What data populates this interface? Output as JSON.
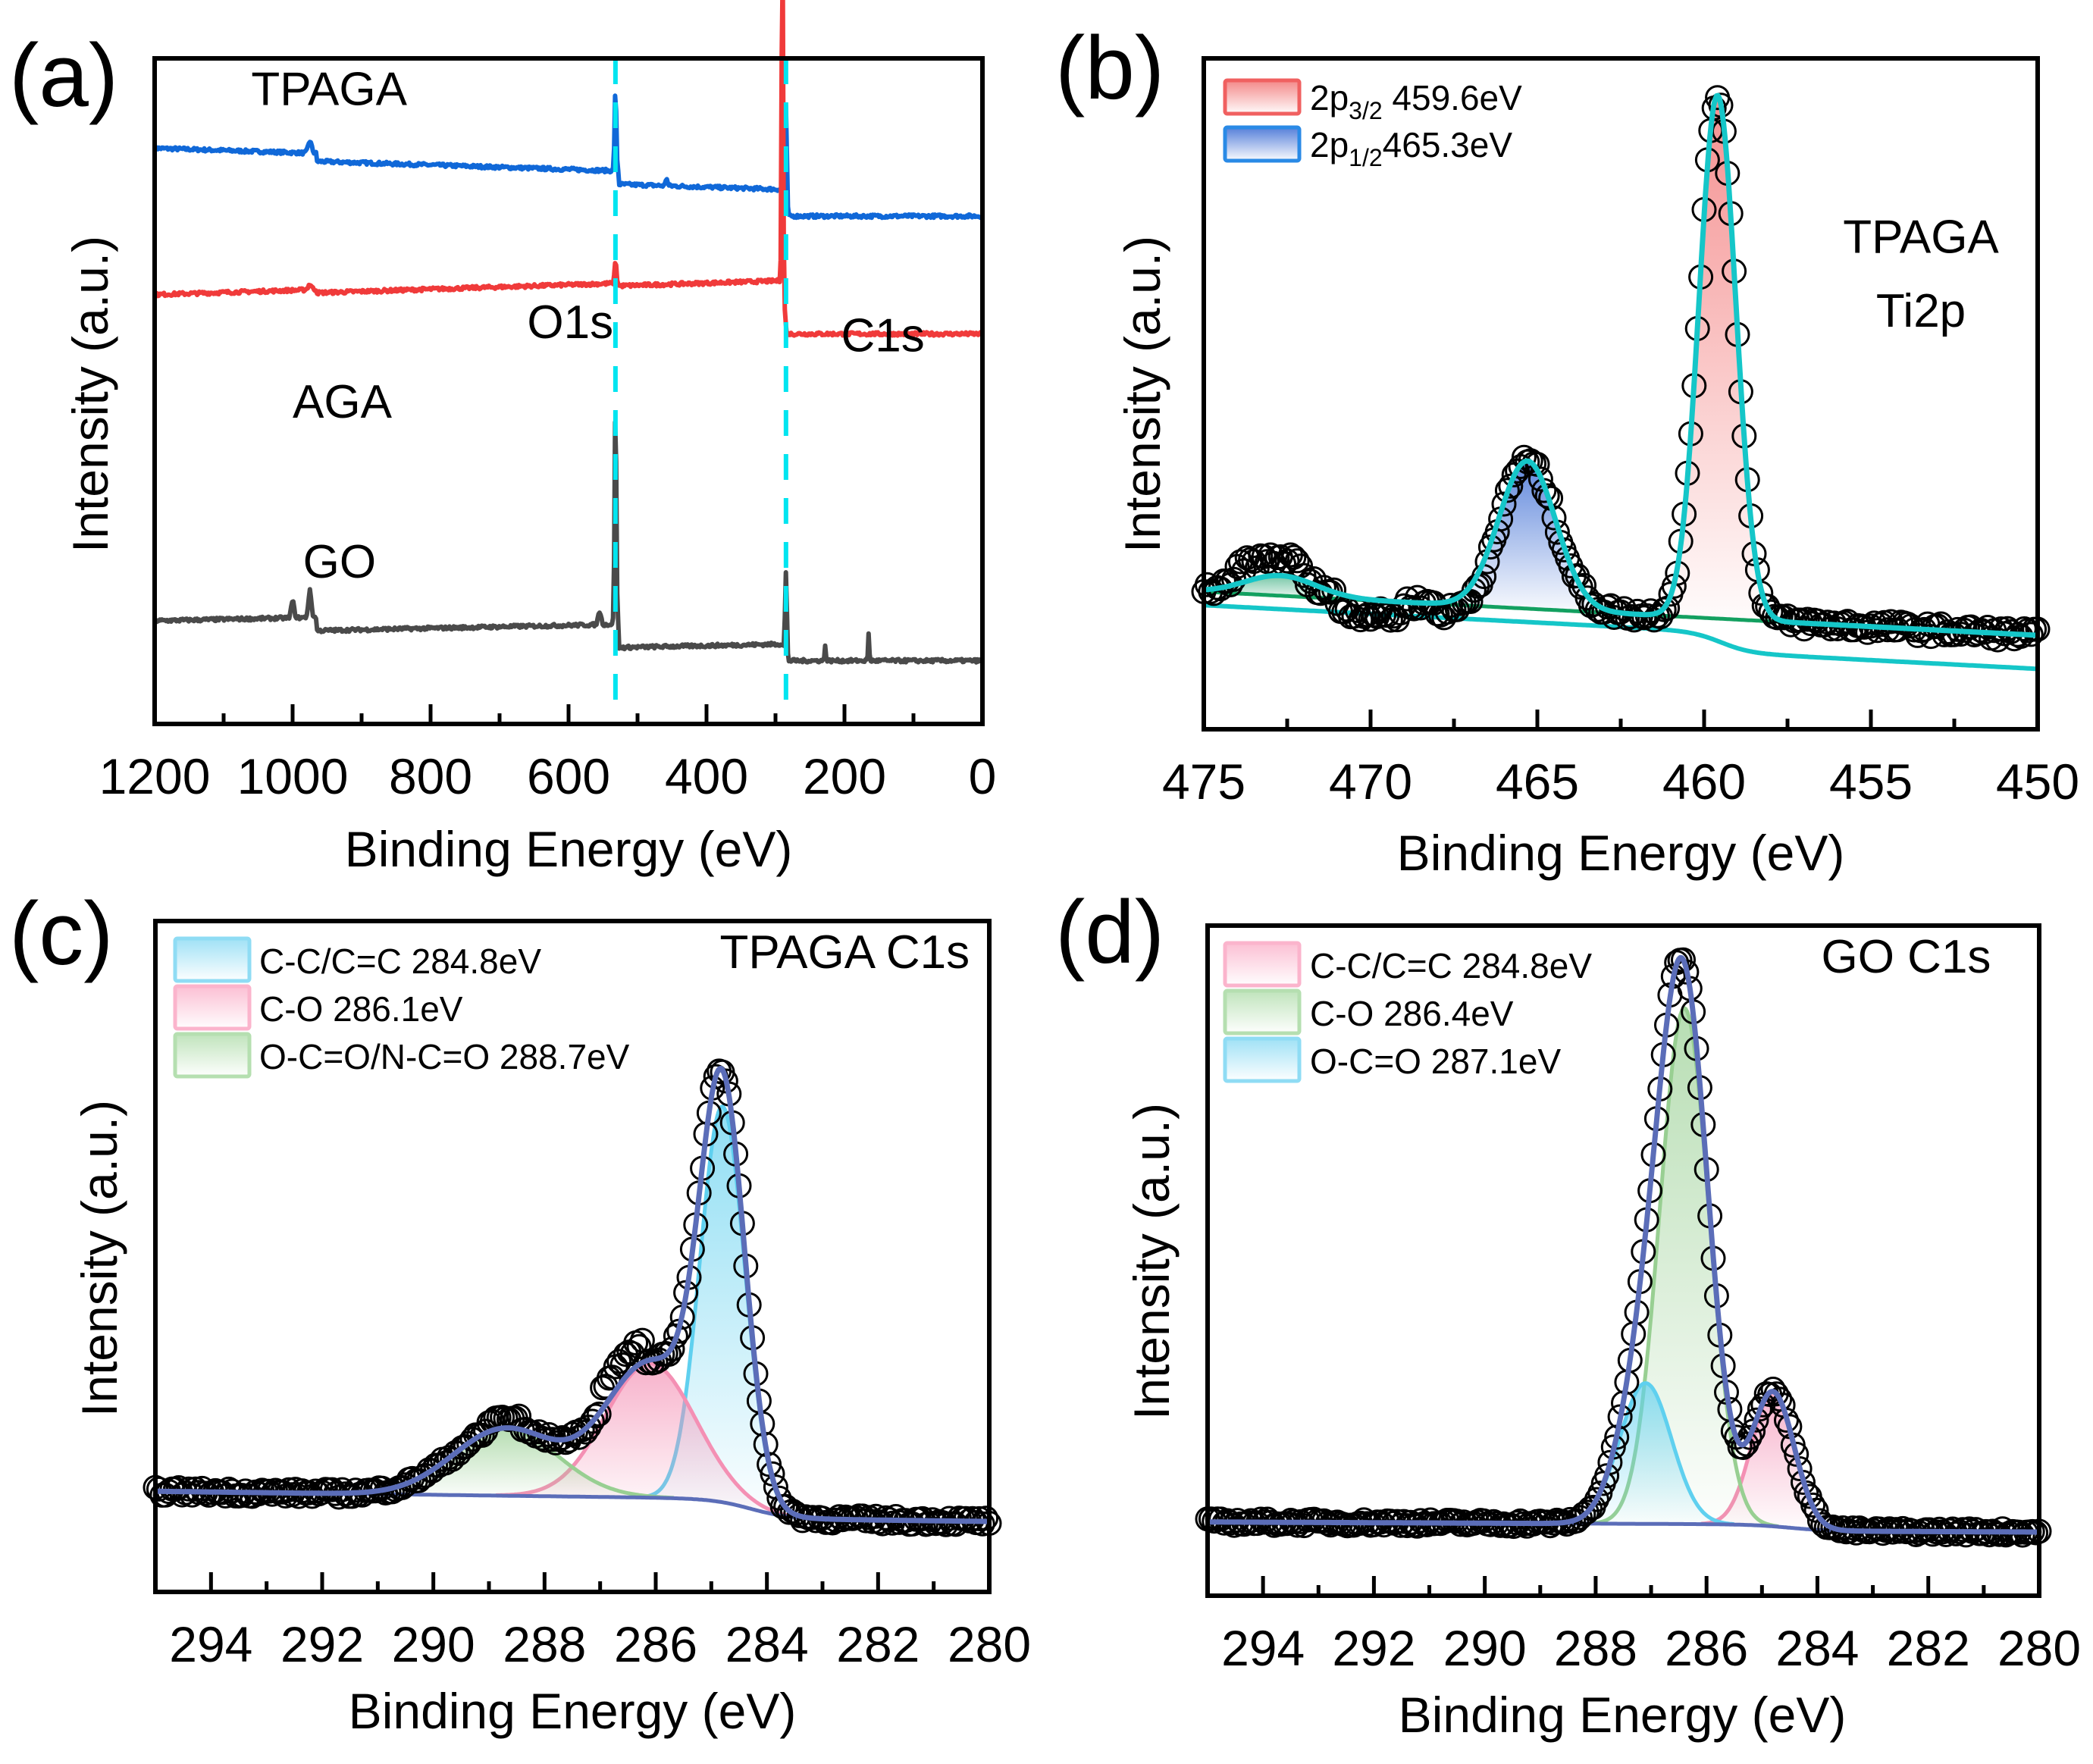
{
  "figure": {
    "panels": [
      "a",
      "b",
      "c",
      "d"
    ]
  },
  "chart_data": [
    {
      "id": "a",
      "type": "line",
      "panel_label": "(a)",
      "title": "",
      "xlabel": "Binding Energy (eV)",
      "ylabel": "Intensity (a.u.)",
      "xlim": [
        1200,
        0
      ],
      "x_reversed": true,
      "xticks": [
        1200,
        1000,
        800,
        600,
        400,
        200,
        0
      ],
      "x_minor_ticks": [
        1100,
        900,
        700,
        500,
        300,
        100
      ],
      "yticks": [],
      "ylim": [
        0,
        100
      ],
      "grid": false,
      "reference_lines": [
        {
          "name": "O1s",
          "x": 532,
          "style": "dashed",
          "color": "#00e5f0"
        },
        {
          "name": "C1s",
          "x": 284.8,
          "style": "dashed",
          "color": "#00e5f0"
        }
      ],
      "annotations": [
        {
          "text": "TPAGA",
          "x": 1060,
          "y": 93
        },
        {
          "text": "O1s",
          "x": 660,
          "y": 58
        },
        {
          "text": "C1s",
          "x": 205,
          "y": 56
        },
        {
          "text": "AGA",
          "x": 1000,
          "y": 46
        },
        {
          "text": "GO",
          "x": 985,
          "y": 22
        }
      ],
      "series": [
        {
          "name": "TPAGA",
          "color": "#1068d8",
          "baseline": {
            "left": 86.5,
            "right_before_C": 83.5,
            "after_C": 79.5
          },
          "features": [
            {
              "x": 975,
              "height": 1.8,
              "width": 6
            },
            {
              "x": 532,
              "height": 12,
              "width": 3
            },
            {
              "x": 458,
              "height": 1.2,
              "width": 3
            },
            {
              "x": 284.8,
              "height": 16,
              "width": 3
            }
          ]
        },
        {
          "name": "AGA",
          "color": "#f03a3a",
          "baseline": {
            "left": 64.5,
            "right_before_C": 67.5,
            "after_C": 59.5
          },
          "features": [
            {
              "x": 975,
              "height": 0.8,
              "width": 6
            },
            {
              "x": 532,
              "height": 3.5,
              "width": 3
            },
            {
              "x": 290,
              "height": 53,
              "width": 2.5
            }
          ]
        },
        {
          "name": "GO",
          "color": "#4a4a4a",
          "baseline": {
            "left": 15.5,
            "right_before_C": 17.5,
            "after_C": 15
          },
          "features": [
            {
              "x": 1000,
              "height": 2.5,
              "width": 5
            },
            {
              "x": 975,
              "height": 4,
              "width": 5
            },
            {
              "x": 555,
              "height": 2,
              "width": 5
            },
            {
              "x": 532,
              "height": 33,
              "width": 3
            },
            {
              "x": 284.8,
              "height": 13,
              "width": 3
            },
            {
              "x": 228,
              "height": 2.5,
              "width": 2
            },
            {
              "x": 165,
              "height": 4,
              "width": 2
            }
          ]
        }
      ]
    },
    {
      "id": "b",
      "type": "scatter",
      "panel_label": "(b)",
      "xlabel": "Binding Energy (eV)",
      "ylabel": "Intensity (a.u.)",
      "xlim": [
        475,
        450
      ],
      "x_reversed": true,
      "xticks": [
        475,
        470,
        465,
        460,
        455,
        450
      ],
      "x_minor_ticks": [
        472.5,
        467.5,
        462.5,
        457.5,
        452.5
      ],
      "ylim": [
        0,
        100
      ],
      "grid": false,
      "annotations": [
        {
          "text": "TPAGA",
          "x": 453.5,
          "y": 71
        },
        {
          "text": "Ti2p",
          "x": 453.5,
          "y": 60
        }
      ],
      "legend": {
        "placement": "top-left",
        "entries": [
          {
            "main": "2p",
            "sub": "3/2",
            "rest": " 459.6eV",
            "color": "#f06060"
          },
          {
            "main": "2p",
            "sub": "1/2",
            "rest": "465.3eV",
            "color": "#2a7fe0"
          }
        ]
      },
      "components": [
        {
          "name": "2p3/2",
          "center": 459.6,
          "height": 78,
          "fwhm": 1.3,
          "color": "#f06060"
        },
        {
          "name": "2p1/2",
          "center": 465.3,
          "height": 22,
          "fwhm": 2.0,
          "color": "#2a6fd8"
        },
        {
          "name": "satellite",
          "center": 472.7,
          "height": 3,
          "fwhm": 2.5,
          "color": "#1aa06a"
        }
      ],
      "background": {
        "left": 20.5,
        "right": 14,
        "color": "#13a060"
      },
      "envelope_color": "#15c6c8",
      "data_points_note": "open black circles, noisy around fit"
    },
    {
      "id": "c",
      "type": "scatter",
      "panel_label": "(c)",
      "xlabel": "Binding Energy (eV)",
      "ylabel": "Intensity (a.u.)",
      "xlim": [
        295,
        280
      ],
      "x_reversed": true,
      "xticks": [
        294,
        292,
        290,
        288,
        286,
        284,
        282,
        280
      ],
      "x_minor_ticks": [
        293,
        291,
        289,
        287,
        285,
        283,
        281
      ],
      "ylim": [
        0,
        100
      ],
      "grid": false,
      "annotations": [
        {
          "text": "TPAGA C1s",
          "x": 282.6,
          "y": 93
        }
      ],
      "legend": {
        "placement": "top-left",
        "entries": [
          {
            "label": "C-C/C=C 284.8eV",
            "color": "#69cff0"
          },
          {
            "label": "C-O 286.1eV",
            "color": "#f59ab8"
          },
          {
            "label": "O-C=O/N-C=O 288.7eV",
            "color": "#9fd39a"
          }
        ]
      },
      "components": [
        {
          "name": "C-C/C=C",
          "center": 284.8,
          "height": 59,
          "fwhm": 0.95,
          "color": "#5fd0ef"
        },
        {
          "name": "C-O",
          "center": 286.1,
          "height": 20,
          "fwhm": 1.9,
          "color": "#f490b4"
        },
        {
          "name": "O-C=O/N-C=O",
          "center": 288.7,
          "height": 10,
          "fwhm": 2.2,
          "color": "#98cf92"
        }
      ],
      "background": {
        "left": 15,
        "right": 10.5,
        "step_center": 284.3,
        "color": "#5b6db8"
      },
      "envelope_color": "#5b6db8"
    },
    {
      "id": "d",
      "type": "scatter",
      "panel_label": "(d)",
      "xlabel": "Binding Energy (eV)",
      "ylabel": "Intensity (a.u.)",
      "xlim": [
        295,
        280
      ],
      "x_reversed": true,
      "xticks": [
        294,
        292,
        290,
        288,
        286,
        284,
        282,
        280
      ],
      "x_minor_ticks": [
        293,
        291,
        289,
        287,
        285,
        283,
        281
      ],
      "ylim": [
        0,
        100
      ],
      "grid": false,
      "annotations": [
        {
          "text": "GO C1s",
          "x": 282.4,
          "y": 93
        }
      ],
      "legend": {
        "placement": "top-left",
        "entries": [
          {
            "label": "C-C/C=C 284.8eV",
            "color": "#f59ab8"
          },
          {
            "label": "C-O 286.4eV",
            "color": "#9fd39a"
          },
          {
            "label": "O-C=O 287.1eV",
            "color": "#69cff0"
          }
        ]
      },
      "components": [
        {
          "name": "C-C/C=C",
          "center": 284.8,
          "height": 20,
          "fwhm": 0.9,
          "color": "#f490b4"
        },
        {
          "name": "C-O",
          "center": 286.4,
          "height": 77,
          "fwhm": 1.05,
          "color": "#98cf92"
        },
        {
          "name": "O-C=O",
          "center": 287.1,
          "height": 21,
          "fwhm": 1.1,
          "color": "#5fd0ef"
        }
      ],
      "background": {
        "left": 11,
        "right": 9.5,
        "step_center": 284.5,
        "color": "#5b6db8"
      },
      "envelope_color": "#5b6db8"
    }
  ]
}
